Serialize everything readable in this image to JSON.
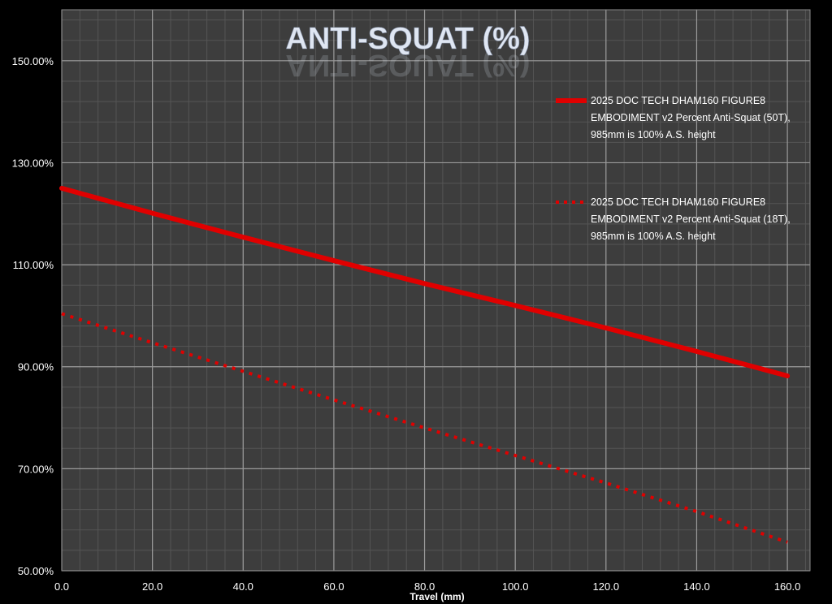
{
  "chart_data": {
    "type": "line",
    "title": "ANTI-SQUAT (%)",
    "xlabel": "Travel (mm)",
    "ylabel": "",
    "xlim": [
      0,
      165
    ],
    "ylim": [
      50,
      160
    ],
    "x_ticks": [
      "0.0",
      "20.0",
      "40.0",
      "60.0",
      "80.0",
      "100.0",
      "120.0",
      "140.0",
      "160.0"
    ],
    "x_tick_values": [
      0,
      20,
      40,
      60,
      80,
      100,
      120,
      140,
      160
    ],
    "y_ticks": [
      "50.00%",
      "70.00%",
      "90.00%",
      "110.00%",
      "130.00%",
      "150.00%"
    ],
    "y_tick_values": [
      50,
      70,
      90,
      110,
      130,
      150
    ],
    "grid": true,
    "legend_position": "right",
    "x": [
      0,
      20,
      40,
      60,
      80,
      100,
      120,
      140,
      160
    ],
    "series": [
      {
        "name": "2025 DOC TECH DHAM160 FIGURE8 EMBODIMENT v2  Percent Anti-Squat (50T), 985mm is 100% A.S. height",
        "legend_lines": [
          "2025 DOC TECH DHAM160 FIGURE8",
          "EMBODIMENT v2  Percent Anti-Squat (50T),",
          "985mm is 100% A.S. height"
        ],
        "values": [
          125.0,
          120.1,
          115.4,
          110.8,
          106.3,
          102.0,
          97.6,
          93.0,
          88.2
        ],
        "color": "#e00000",
        "style": "solid"
      },
      {
        "name": "2025 DOC TECH DHAM160 FIGURE8 EMBODIMENT v2  Percent Anti-Squat (18T), 985mm is 100% A.S. height",
        "legend_lines": [
          "2025 DOC TECH DHAM160 FIGURE8",
          "EMBODIMENT v2  Percent Anti-Squat (18T),",
          "985mm is 100% A.S. height"
        ],
        "values": [
          100.4,
          94.7,
          89.1,
          83.5,
          78.0,
          72.6,
          67.2,
          61.6,
          55.6
        ],
        "color": "#e00000",
        "style": "dotted"
      }
    ]
  }
}
